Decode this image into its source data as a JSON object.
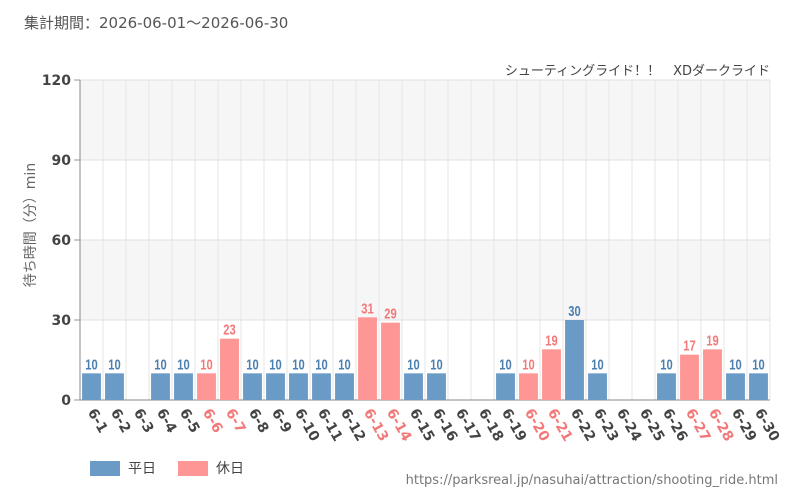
{
  "header": {
    "period_label": "集計期間：2026-06-01～2026-06-30"
  },
  "footer": {
    "url": "https://parksreal.jp/nasuhai/attraction/shooting_ride.html"
  },
  "chart_data": {
    "type": "bar",
    "subtitle": "シューティングライド！！　XDダークライド",
    "ylabel": "待ち時間（分）min",
    "xlabel": "",
    "ylim": [
      0,
      120
    ],
    "yticks": [
      0,
      30,
      60,
      90,
      120
    ],
    "grid": true,
    "legend_position": "bottom-left",
    "colors": {
      "weekday": "#6a9bc6",
      "holiday": "#fe9696",
      "weekday_text": "#4a7fb0",
      "holiday_text": "#f27979",
      "axis_text": "#444444"
    },
    "legend": [
      {
        "key": "weekday",
        "label": "平日"
      },
      {
        "key": "holiday",
        "label": "休日"
      }
    ],
    "categories": [
      "6-1",
      "6-2",
      "6-3",
      "6-4",
      "6-5",
      "6-6",
      "6-7",
      "6-8",
      "6-9",
      "6-10",
      "6-11",
      "6-12",
      "6-13",
      "6-14",
      "6-15",
      "6-16",
      "6-17",
      "6-18",
      "6-19",
      "6-20",
      "6-21",
      "6-22",
      "6-23",
      "6-24",
      "6-25",
      "6-26",
      "6-27",
      "6-28",
      "6-29",
      "6-30"
    ],
    "day_type": [
      "weekday",
      "weekday",
      "weekday",
      "weekday",
      "weekday",
      "holiday",
      "holiday",
      "weekday",
      "weekday",
      "weekday",
      "weekday",
      "weekday",
      "holiday",
      "holiday",
      "weekday",
      "weekday",
      "weekday",
      "weekday",
      "weekday",
      "holiday",
      "holiday",
      "weekday",
      "weekday",
      "weekday",
      "weekday",
      "weekday",
      "holiday",
      "holiday",
      "weekday",
      "weekday"
    ],
    "values": [
      10,
      10,
      null,
      10,
      10,
      10,
      23,
      10,
      10,
      10,
      10,
      10,
      31,
      29,
      10,
      10,
      null,
      null,
      10,
      10,
      19,
      30,
      10,
      null,
      null,
      10,
      17,
      19,
      10,
      10
    ]
  }
}
